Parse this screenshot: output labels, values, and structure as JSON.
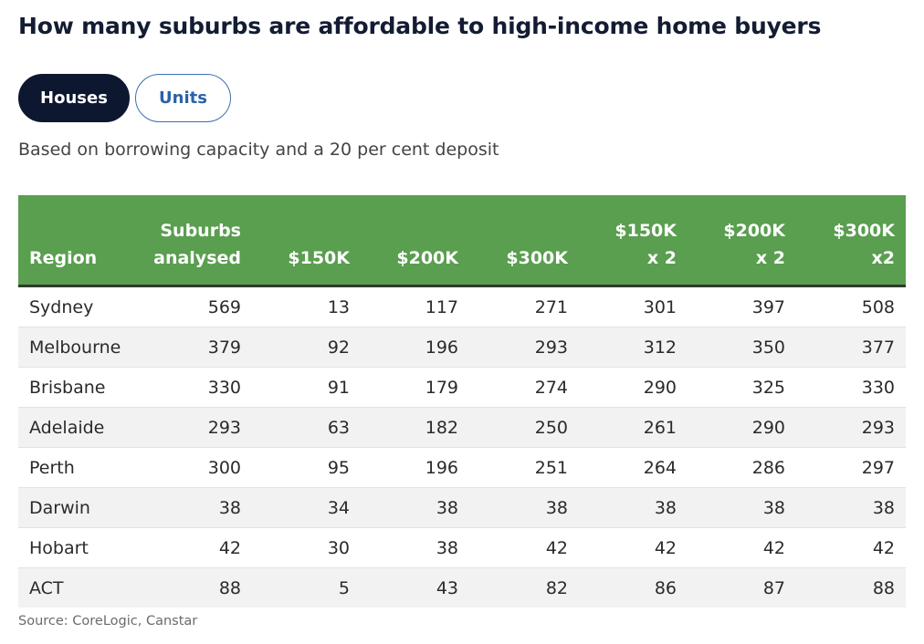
{
  "title": "How many suburbs are affordable to high-income home buyers",
  "toggle": {
    "houses_label": "Houses",
    "units_label": "Units",
    "selected": "Houses"
  },
  "subtitle": "Based on borrowing capacity and a 20 per cent deposit",
  "colors": {
    "header_green": "#5a9e4f",
    "active_button": "#0d1730",
    "inactive_button_text": "#2a62a8"
  },
  "chart_data": {
    "type": "table",
    "columns": [
      "Region",
      "Suburbs\nanalysed",
      "$150K",
      "$200K",
      "$300K",
      "$150K\nx 2",
      "$200K\nx 2",
      "$300K\nx2"
    ],
    "rows": [
      [
        "Sydney",
        "569",
        "13",
        "117",
        "271",
        "301",
        "397",
        "508"
      ],
      [
        "Melbourne",
        "379",
        "92",
        "196",
        "293",
        "312",
        "350",
        "377"
      ],
      [
        "Brisbane",
        "330",
        "91",
        "179",
        "274",
        "290",
        "325",
        "330"
      ],
      [
        "Adelaide",
        "293",
        "63",
        "182",
        "250",
        "261",
        "290",
        "293"
      ],
      [
        "Perth",
        "300",
        "95",
        "196",
        "251",
        "264",
        "286",
        "297"
      ],
      [
        "Darwin",
        "38",
        "34",
        "38",
        "38",
        "38",
        "38",
        "38"
      ],
      [
        "Hobart",
        "42",
        "30",
        "38",
        "42",
        "42",
        "42",
        "42"
      ],
      [
        "ACT",
        "88",
        "5",
        "43",
        "82",
        "86",
        "87",
        "88"
      ]
    ]
  },
  "source": "Source: CoreLogic, Canstar"
}
